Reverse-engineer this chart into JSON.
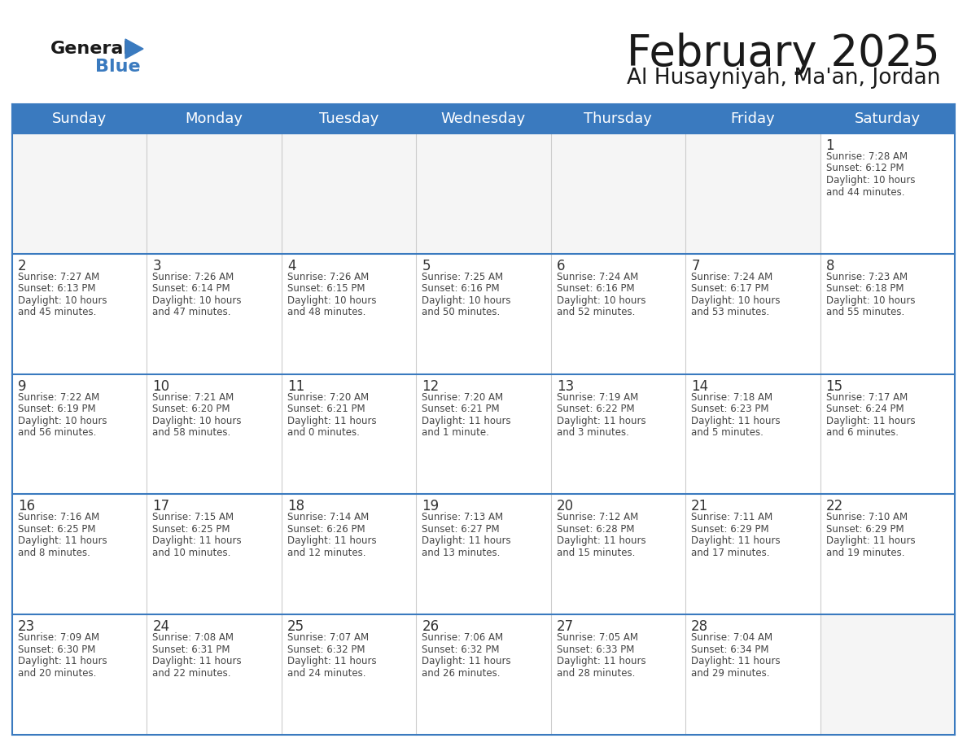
{
  "title": "February 2025",
  "subtitle": "Al Husayniyah, Ma'an, Jordan",
  "header_bg": "#3a7abf",
  "header_text_color": "#ffffff",
  "line_color": "#3a7abf",
  "days_of_week": [
    "Sunday",
    "Monday",
    "Tuesday",
    "Wednesday",
    "Thursday",
    "Friday",
    "Saturday"
  ],
  "weeks": [
    [
      {
        "day": null
      },
      {
        "day": null
      },
      {
        "day": null
      },
      {
        "day": null
      },
      {
        "day": null
      },
      {
        "day": null
      },
      {
        "day": 1,
        "sunrise": "7:28 AM",
        "sunset": "6:12 PM",
        "daylight_h": "10 hours",
        "daylight_m": "and 44 minutes."
      }
    ],
    [
      {
        "day": 2,
        "sunrise": "7:27 AM",
        "sunset": "6:13 PM",
        "daylight_h": "10 hours",
        "daylight_m": "and 45 minutes."
      },
      {
        "day": 3,
        "sunrise": "7:26 AM",
        "sunset": "6:14 PM",
        "daylight_h": "10 hours",
        "daylight_m": "and 47 minutes."
      },
      {
        "day": 4,
        "sunrise": "7:26 AM",
        "sunset": "6:15 PM",
        "daylight_h": "10 hours",
        "daylight_m": "and 48 minutes."
      },
      {
        "day": 5,
        "sunrise": "7:25 AM",
        "sunset": "6:16 PM",
        "daylight_h": "10 hours",
        "daylight_m": "and 50 minutes."
      },
      {
        "day": 6,
        "sunrise": "7:24 AM",
        "sunset": "6:16 PM",
        "daylight_h": "10 hours",
        "daylight_m": "and 52 minutes."
      },
      {
        "day": 7,
        "sunrise": "7:24 AM",
        "sunset": "6:17 PM",
        "daylight_h": "10 hours",
        "daylight_m": "and 53 minutes."
      },
      {
        "day": 8,
        "sunrise": "7:23 AM",
        "sunset": "6:18 PM",
        "daylight_h": "10 hours",
        "daylight_m": "and 55 minutes."
      }
    ],
    [
      {
        "day": 9,
        "sunrise": "7:22 AM",
        "sunset": "6:19 PM",
        "daylight_h": "10 hours",
        "daylight_m": "and 56 minutes."
      },
      {
        "day": 10,
        "sunrise": "7:21 AM",
        "sunset": "6:20 PM",
        "daylight_h": "10 hours",
        "daylight_m": "and 58 minutes."
      },
      {
        "day": 11,
        "sunrise": "7:20 AM",
        "sunset": "6:21 PM",
        "daylight_h": "11 hours",
        "daylight_m": "and 0 minutes."
      },
      {
        "day": 12,
        "sunrise": "7:20 AM",
        "sunset": "6:21 PM",
        "daylight_h": "11 hours",
        "daylight_m": "and 1 minute."
      },
      {
        "day": 13,
        "sunrise": "7:19 AM",
        "sunset": "6:22 PM",
        "daylight_h": "11 hours",
        "daylight_m": "and 3 minutes."
      },
      {
        "day": 14,
        "sunrise": "7:18 AM",
        "sunset": "6:23 PM",
        "daylight_h": "11 hours",
        "daylight_m": "and 5 minutes."
      },
      {
        "day": 15,
        "sunrise": "7:17 AM",
        "sunset": "6:24 PM",
        "daylight_h": "11 hours",
        "daylight_m": "and 6 minutes."
      }
    ],
    [
      {
        "day": 16,
        "sunrise": "7:16 AM",
        "sunset": "6:25 PM",
        "daylight_h": "11 hours",
        "daylight_m": "and 8 minutes."
      },
      {
        "day": 17,
        "sunrise": "7:15 AM",
        "sunset": "6:25 PM",
        "daylight_h": "11 hours",
        "daylight_m": "and 10 minutes."
      },
      {
        "day": 18,
        "sunrise": "7:14 AM",
        "sunset": "6:26 PM",
        "daylight_h": "11 hours",
        "daylight_m": "and 12 minutes."
      },
      {
        "day": 19,
        "sunrise": "7:13 AM",
        "sunset": "6:27 PM",
        "daylight_h": "11 hours",
        "daylight_m": "and 13 minutes."
      },
      {
        "day": 20,
        "sunrise": "7:12 AM",
        "sunset": "6:28 PM",
        "daylight_h": "11 hours",
        "daylight_m": "and 15 minutes."
      },
      {
        "day": 21,
        "sunrise": "7:11 AM",
        "sunset": "6:29 PM",
        "daylight_h": "11 hours",
        "daylight_m": "and 17 minutes."
      },
      {
        "day": 22,
        "sunrise": "7:10 AM",
        "sunset": "6:29 PM",
        "daylight_h": "11 hours",
        "daylight_m": "and 19 minutes."
      }
    ],
    [
      {
        "day": 23,
        "sunrise": "7:09 AM",
        "sunset": "6:30 PM",
        "daylight_h": "11 hours",
        "daylight_m": "and 20 minutes."
      },
      {
        "day": 24,
        "sunrise": "7:08 AM",
        "sunset": "6:31 PM",
        "daylight_h": "11 hours",
        "daylight_m": "and 22 minutes."
      },
      {
        "day": 25,
        "sunrise": "7:07 AM",
        "sunset": "6:32 PM",
        "daylight_h": "11 hours",
        "daylight_m": "and 24 minutes."
      },
      {
        "day": 26,
        "sunrise": "7:06 AM",
        "sunset": "6:32 PM",
        "daylight_h": "11 hours",
        "daylight_m": "and 26 minutes."
      },
      {
        "day": 27,
        "sunrise": "7:05 AM",
        "sunset": "6:33 PM",
        "daylight_h": "11 hours",
        "daylight_m": "and 28 minutes."
      },
      {
        "day": 28,
        "sunrise": "7:04 AM",
        "sunset": "6:34 PM",
        "daylight_h": "11 hours",
        "daylight_m": "and 29 minutes."
      },
      {
        "day": null
      }
    ]
  ]
}
